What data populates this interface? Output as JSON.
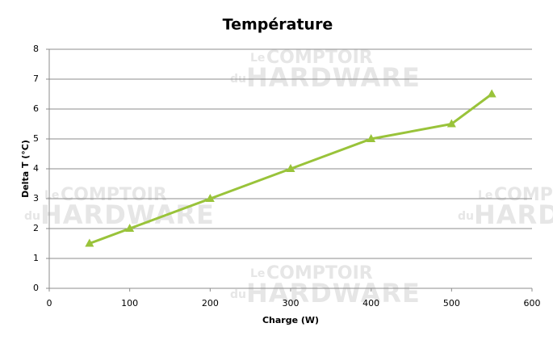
{
  "chart_data": {
    "type": "line",
    "title": "Température",
    "xlabel": "Charge (W)",
    "ylabel": "Delta T (°C)",
    "x": [
      50,
      100,
      200,
      300,
      400,
      500,
      550
    ],
    "series": [
      {
        "color": "#99c33a",
        "values": [
          1.5,
          2,
          3,
          4,
          5,
          5.5,
          6.5
        ]
      }
    ],
    "xlim": [
      0,
      600
    ],
    "xticks": [
      0,
      100,
      200,
      300,
      400,
      500,
      600
    ],
    "ylim": [
      0,
      8
    ],
    "yticks": [
      0,
      1,
      2,
      3,
      4,
      5,
      6,
      7,
      8
    ],
    "grid": true,
    "watermark": {
      "small_top": "Le",
      "top": "COMPTOIR",
      "small_bottom": "du",
      "bottom": "HARDWARE"
    }
  }
}
